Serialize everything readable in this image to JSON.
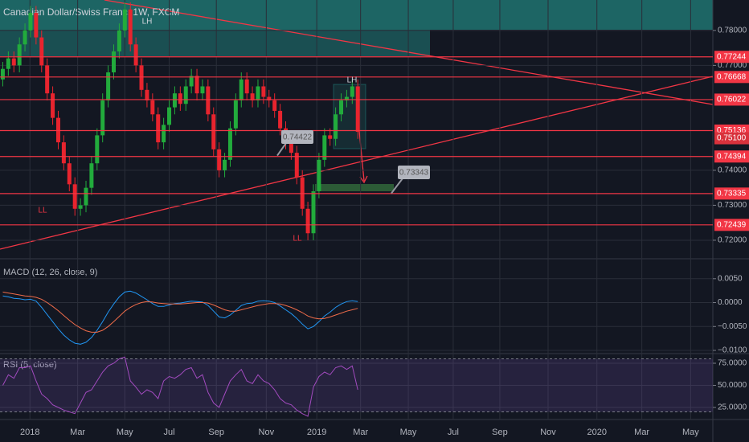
{
  "chart_data": [
    {
      "type": "candlestick",
      "title": "Canadian Dollar/Swiss Franc, 1W, FXCM",
      "up_color": "#22ab3c",
      "down_color": "#e8242e",
      "open": [
        0.766,
        0.769,
        0.772,
        0.77,
        0.776,
        0.78,
        0.785,
        0.778,
        0.77,
        0.762,
        0.755,
        0.748,
        0.742,
        0.736,
        0.729,
        0.73,
        0.735,
        0.742,
        0.75,
        0.76,
        0.768,
        0.774,
        0.78,
        0.786,
        0.776,
        0.77,
        0.763,
        0.76,
        0.756,
        0.748,
        0.753,
        0.758,
        0.762,
        0.759,
        0.764,
        0.767,
        0.762,
        0.764,
        0.756,
        0.746,
        0.74,
        0.743,
        0.752,
        0.76,
        0.766,
        0.762,
        0.76,
        0.764,
        0.761,
        0.76,
        0.757,
        0.752,
        0.748,
        0.745,
        0.738,
        0.729,
        0.722,
        0.734,
        0.743,
        0.75,
        0.749,
        0.756,
        0.76,
        0.761,
        0.764
      ],
      "high": [
        0.771,
        0.774,
        0.774,
        0.778,
        0.782,
        0.787,
        0.787,
        0.78,
        0.772,
        0.764,
        0.757,
        0.75,
        0.744,
        0.738,
        0.732,
        0.737,
        0.744,
        0.752,
        0.762,
        0.77,
        0.776,
        0.782,
        0.788,
        0.788,
        0.778,
        0.772,
        0.765,
        0.762,
        0.758,
        0.755,
        0.76,
        0.764,
        0.764,
        0.766,
        0.769,
        0.769,
        0.766,
        0.766,
        0.758,
        0.748,
        0.745,
        0.754,
        0.762,
        0.768,
        0.768,
        0.764,
        0.766,
        0.766,
        0.763,
        0.762,
        0.759,
        0.754,
        0.75,
        0.747,
        0.74,
        0.731,
        0.736,
        0.745,
        0.752,
        0.752,
        0.758,
        0.762,
        0.763,
        0.766,
        0.766
      ],
      "low": [
        0.764,
        0.767,
        0.768,
        0.768,
        0.774,
        0.778,
        0.776,
        0.768,
        0.76,
        0.753,
        0.746,
        0.74,
        0.734,
        0.727,
        0.727,
        0.728,
        0.733,
        0.74,
        0.748,
        0.758,
        0.766,
        0.772,
        0.778,
        0.774,
        0.768,
        0.761,
        0.758,
        0.754,
        0.746,
        0.746,
        0.751,
        0.756,
        0.757,
        0.757,
        0.762,
        0.76,
        0.76,
        0.754,
        0.744,
        0.738,
        0.738,
        0.741,
        0.75,
        0.758,
        0.76,
        0.758,
        0.758,
        0.759,
        0.758,
        0.755,
        0.75,
        0.746,
        0.743,
        0.736,
        0.727,
        0.72,
        0.72,
        0.732,
        0.741,
        0.747,
        0.747,
        0.754,
        0.758,
        0.759,
        0.749
      ],
      "close": [
        0.769,
        0.772,
        0.77,
        0.776,
        0.78,
        0.785,
        0.778,
        0.77,
        0.762,
        0.755,
        0.748,
        0.742,
        0.736,
        0.729,
        0.73,
        0.735,
        0.742,
        0.75,
        0.76,
        0.768,
        0.774,
        0.78,
        0.786,
        0.776,
        0.77,
        0.763,
        0.76,
        0.756,
        0.748,
        0.753,
        0.758,
        0.762,
        0.759,
        0.764,
        0.767,
        0.762,
        0.764,
        0.756,
        0.746,
        0.74,
        0.743,
        0.752,
        0.76,
        0.766,
        0.762,
        0.76,
        0.764,
        0.761,
        0.76,
        0.757,
        0.752,
        0.748,
        0.745,
        0.738,
        0.729,
        0.722,
        0.734,
        0.743,
        0.75,
        0.749,
        0.756,
        0.76,
        0.761,
        0.764,
        0.751
      ],
      "ylim": [
        0.7147,
        0.7887
      ],
      "yticks": [
        {
          "value": 0.78,
          "label": "0.78000"
        },
        {
          "value": 0.77,
          "label": "0.77000"
        },
        {
          "value": 0.74,
          "label": "0.74000"
        },
        {
          "value": 0.73,
          "label": "0.73000"
        },
        {
          "value": 0.72,
          "label": "0.72000"
        }
      ],
      "xlim": [
        -0.5,
        128
      ],
      "xticks": [
        {
          "value": 4.9,
          "label": "2018"
        },
        {
          "value": 13.5,
          "label": "Mar"
        },
        {
          "value": 22,
          "label": "May"
        },
        {
          "value": 30,
          "label": "Jul"
        },
        {
          "value": 38.5,
          "label": "Sep"
        },
        {
          "value": 47.5,
          "label": "Nov"
        },
        {
          "value": 56.6,
          "label": "2019"
        },
        {
          "value": 64.5,
          "label": "Mar"
        },
        {
          "value": 73.1,
          "label": "May"
        },
        {
          "value": 81.2,
          "label": "Jul"
        },
        {
          "value": 89.6,
          "label": "Sep"
        },
        {
          "value": 98.3,
          "label": "Nov"
        },
        {
          "value": 107.1,
          "label": "2020"
        },
        {
          "value": 115.2,
          "label": "Mar"
        },
        {
          "value": 124,
          "label": "May"
        }
      ],
      "level_color": "#f23645",
      "levels": [
        {
          "value": 0.77244,
          "label": "0.77244"
        },
        {
          "value": 0.76668,
          "label": "0.76668"
        },
        {
          "value": 0.76022,
          "label": "0.76022"
        },
        {
          "value": 0.75136,
          "label": "0.75136"
        },
        {
          "value": 0.74394,
          "label": "0.74394"
        },
        {
          "value": 0.73335,
          "label": "0.73335"
        },
        {
          "value": 0.72439,
          "label": "0.72439"
        }
      ],
      "last_price": {
        "value": 0.751,
        "label": "0.75100"
      },
      "annotations": [
        "LH",
        "LH",
        "LL",
        "LL"
      ],
      "callouts": [
        {
          "value": 0.74422,
          "label": "0.74422"
        },
        {
          "value": 0.73343,
          "label": "0.73343"
        }
      ]
    },
    {
      "type": "line",
      "title": "MACD (12, 26, close, 9)",
      "series": [
        {
          "color": "#2196f3",
          "values": [
            0.0014,
            0.0012,
            0.0009,
            0.0008,
            0.0006,
            0.0007,
            0.0003,
            -0.001,
            -0.0025,
            -0.004,
            -0.0055,
            -0.0068,
            -0.0078,
            -0.0085,
            -0.0087,
            -0.0083,
            -0.0073,
            -0.0058,
            -0.004,
            -0.002,
            -0.0003,
            0.0012,
            0.0022,
            0.0024,
            0.002,
            0.0013,
            0.0006,
            -0.0002,
            -0.0008,
            -0.0008,
            -0.0005,
            -0.0002,
            -0.0001,
            0.0001,
            0.0003,
            0.0002,
            0.0001,
            -0.0006,
            -0.0018,
            -0.003,
            -0.0032,
            -0.0026,
            -0.0016,
            -0.0006,
            -0.0002,
            -0.0001,
            0.0003,
            0.0004,
            0.0003,
            0.0,
            -0.0007,
            -0.0015,
            -0.0023,
            -0.0033,
            -0.0045,
            -0.0055,
            -0.005,
            -0.004,
            -0.0028,
            -0.002,
            -0.001,
            -0.0003,
            0.0002,
            0.0004,
            0.0002
          ]
        },
        {
          "color": "#ef6c4a",
          "values": [
            0.0022,
            0.002,
            0.0018,
            0.0016,
            0.0014,
            0.0013,
            0.0011,
            0.0007,
            0.0,
            -0.0008,
            -0.0017,
            -0.0027,
            -0.0037,
            -0.0046,
            -0.0053,
            -0.0059,
            -0.0062,
            -0.0062,
            -0.0058,
            -0.005,
            -0.004,
            -0.0029,
            -0.0018,
            -0.001,
            -0.0004,
            0.0,
            0.0002,
            0.0001,
            -0.0001,
            -0.0002,
            -0.0003,
            -0.0003,
            -0.0003,
            -0.0002,
            -0.0001,
            0.0,
            0.0,
            -0.0001,
            -0.0005,
            -0.001,
            -0.0015,
            -0.0018,
            -0.0018,
            -0.0015,
            -0.0012,
            -0.0009,
            -0.0006,
            -0.0004,
            -0.0002,
            -0.0002,
            -0.0003,
            -0.0006,
            -0.001,
            -0.0015,
            -0.0021,
            -0.0028,
            -0.0032,
            -0.0034,
            -0.0033,
            -0.003,
            -0.0026,
            -0.0022,
            -0.0018,
            -0.0015,
            -0.0012
          ]
        }
      ],
      "ylim": [
        -0.01067,
        0.009
      ],
      "yticks": [
        {
          "value": 0.005,
          "label": "0.0050"
        },
        {
          "value": 0,
          "label": "0.0000"
        },
        {
          "value": -0.005,
          "label": "−0.0050"
        },
        {
          "value": -0.01,
          "label": "−0.0100"
        }
      ]
    },
    {
      "type": "line",
      "title": "RSI (5, close)",
      "series": [
        {
          "color": "#a24bbf",
          "values": [
            50,
            62,
            58,
            70,
            70,
            72,
            55,
            40,
            35,
            28,
            25,
            22,
            20,
            18,
            30,
            42,
            45,
            55,
            65,
            72,
            75,
            80,
            82,
            55,
            48,
            40,
            45,
            42,
            35,
            55,
            60,
            58,
            62,
            68,
            70,
            58,
            62,
            42,
            30,
            25,
            40,
            55,
            62,
            68,
            55,
            52,
            62,
            55,
            52,
            45,
            35,
            30,
            28,
            22,
            18,
            15,
            48,
            60,
            65,
            62,
            70,
            72,
            68,
            72,
            45
          ]
        }
      ],
      "band": [
        20,
        80
      ],
      "ylim": [
        11.4,
        85
      ],
      "yticks": [
        {
          "value": 75,
          "label": "75.0000"
        },
        {
          "value": 50,
          "label": "50.0000"
        },
        {
          "value": 25,
          "label": "25.0000"
        }
      ]
    }
  ]
}
